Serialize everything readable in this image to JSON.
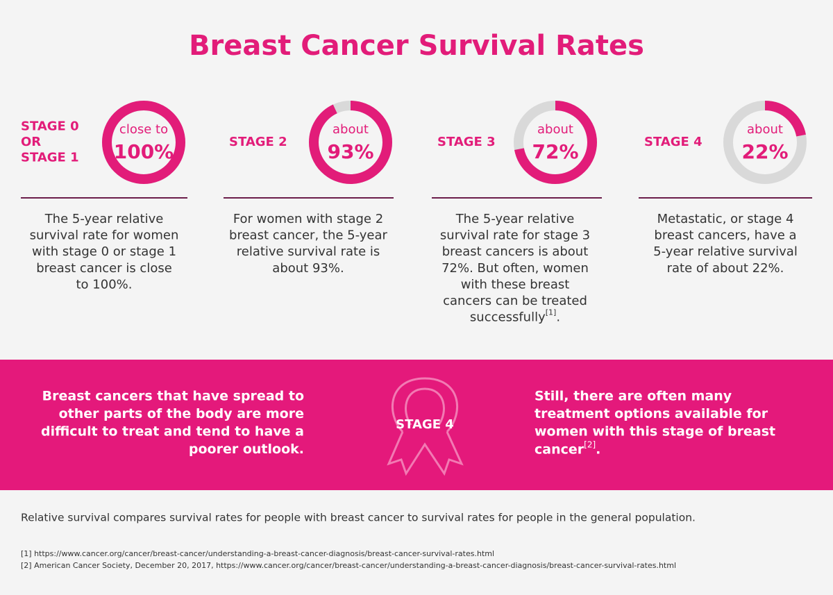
{
  "title": "Breast Cancer Survival Rates",
  "stages": [
    {
      "label": [
        "STAGE 0",
        "OR",
        "STAGE 1"
      ],
      "prefix": "close to",
      "percent": 100,
      "percent_label": "100%",
      "description": [
        "The 5-year relative",
        "survival rate for women",
        "with stage 0 or stage 1",
        "breast cancer is close",
        "to 100%."
      ]
    },
    {
      "label": [
        "STAGE 2"
      ],
      "prefix": "about",
      "percent": 93,
      "percent_label": "93%",
      "description": [
        "For women with stage 2",
        "breast cancer, the 5-year",
        "relative survival rate is",
        "about 93%."
      ]
    },
    {
      "label": [
        "STAGE 3"
      ],
      "prefix": "about",
      "percent": 72,
      "percent_label": "72%",
      "description": [
        "The 5-year relative",
        "survival rate for stage 3",
        "breast cancers is about",
        "72%. But often, women",
        "with these breast",
        "cancers can be treated",
        "successfully"
      ],
      "note": "[1]",
      "note_tail": "."
    },
    {
      "label": [
        "STAGE 4"
      ],
      "prefix": "about",
      "percent": 22,
      "percent_label": "22%",
      "description": [
        "Metastatic, or stage 4",
        "breast cancers, have a",
        "5-year relative survival",
        "rate of about 22%."
      ]
    }
  ],
  "banner": {
    "left": [
      "Breast cancers that have spread to",
      "other parts of the body are more",
      "difficult to treat and tend to have a",
      "poorer outlook."
    ],
    "center": "STAGE 4",
    "right": [
      "Still, there are often many",
      "treatment options available for",
      "women with this stage of breast",
      "cancer"
    ],
    "right_note": "[2]",
    "right_tail": "."
  },
  "footer": {
    "note": "Relative survival compares survival rates for people with breast cancer to survival rates for people in the general population.",
    "references": [
      "[1] https://www.cancer.org/cancer/breast-cancer/understanding-a-breast-cancer-diagnosis/breast-cancer-survival-rates.html",
      "[2] American Cancer Society, December 20, 2017, https://www.cancer.org/cancer/breast-cancer/understanding-a-breast-cancer-diagnosis/breast-cancer-survival-rates.html"
    ]
  }
}
